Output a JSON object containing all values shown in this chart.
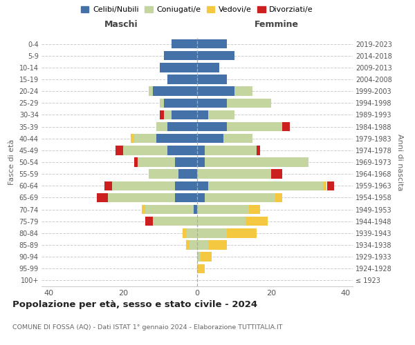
{
  "age_groups": [
    "100+",
    "95-99",
    "90-94",
    "85-89",
    "80-84",
    "75-79",
    "70-74",
    "65-69",
    "60-64",
    "55-59",
    "50-54",
    "45-49",
    "40-44",
    "35-39",
    "30-34",
    "25-29",
    "20-24",
    "15-19",
    "10-14",
    "5-9",
    "0-4"
  ],
  "birth_years": [
    "≤ 1923",
    "1924-1928",
    "1929-1933",
    "1934-1938",
    "1939-1943",
    "1944-1948",
    "1949-1953",
    "1954-1958",
    "1959-1963",
    "1964-1968",
    "1969-1973",
    "1974-1978",
    "1979-1983",
    "1984-1988",
    "1989-1993",
    "1994-1998",
    "1999-2003",
    "2004-2008",
    "2009-2013",
    "2014-2018",
    "2019-2023"
  ],
  "colors": {
    "celibi": "#4472a8",
    "coniugati": "#c5d5a0",
    "vedovi": "#f5c842",
    "divorziati": "#cc2020"
  },
  "maschi": {
    "celibi": [
      0,
      0,
      0,
      0,
      0,
      0,
      1,
      6,
      6,
      5,
      6,
      8,
      11,
      8,
      7,
      9,
      12,
      8,
      10,
      9,
      7
    ],
    "coniugati": [
      0,
      0,
      0,
      2,
      3,
      12,
      13,
      18,
      17,
      8,
      10,
      12,
      6,
      3,
      2,
      1,
      1,
      0,
      0,
      0,
      0
    ],
    "vedovi": [
      0,
      0,
      0,
      1,
      1,
      0,
      1,
      0,
      0,
      0,
      0,
      0,
      1,
      0,
      0,
      0,
      0,
      0,
      0,
      0,
      0
    ],
    "divorziati": [
      0,
      0,
      0,
      0,
      0,
      2,
      0,
      3,
      2,
      0,
      1,
      2,
      0,
      0,
      1,
      0,
      0,
      0,
      0,
      0,
      0
    ]
  },
  "femmine": {
    "celibi": [
      0,
      0,
      0,
      0,
      0,
      0,
      0,
      2,
      3,
      0,
      2,
      2,
      7,
      8,
      3,
      8,
      10,
      8,
      6,
      10,
      8
    ],
    "coniugati": [
      0,
      0,
      1,
      3,
      8,
      13,
      14,
      19,
      31,
      20,
      28,
      14,
      8,
      15,
      7,
      12,
      5,
      0,
      0,
      0,
      0
    ],
    "vedovi": [
      0,
      2,
      3,
      5,
      8,
      6,
      3,
      2,
      1,
      0,
      0,
      0,
      0,
      0,
      0,
      0,
      0,
      0,
      0,
      0,
      0
    ],
    "divorziati": [
      0,
      0,
      0,
      0,
      0,
      0,
      0,
      0,
      2,
      3,
      0,
      1,
      0,
      2,
      0,
      0,
      0,
      0,
      0,
      0,
      0
    ]
  },
  "title_main": "Popolazione per età, sesso e stato civile - 2024",
  "title_sub": "COMUNE DI FOSSA (AQ) - Dati ISTAT 1° gennaio 2024 - Elaborazione TUTTITALIA.IT",
  "xlabel_left": "Maschi",
  "xlabel_right": "Femmine",
  "ylabel_left": "Fasce di età",
  "ylabel_right": "Anni di nascita",
  "xlim": 42,
  "legend_labels": [
    "Celibi/Nubili",
    "Coniugati/e",
    "Vedovi/e",
    "Divorziati/e"
  ],
  "background_color": "#ffffff",
  "grid_color": "#cccccc"
}
